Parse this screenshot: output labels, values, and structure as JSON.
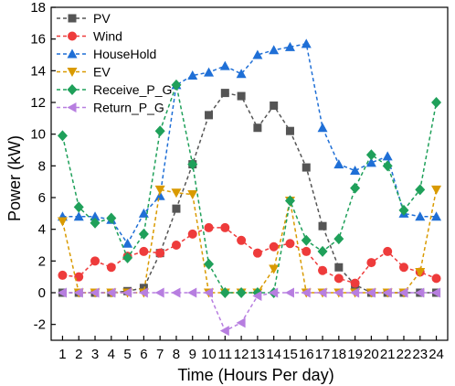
{
  "chart_data": {
    "type": "line",
    "xlabel": "Time (Hours Per day)",
    "ylabel": "Power (kW)",
    "xlim": [
      0.3,
      24.7
    ],
    "ylim": [
      -3,
      18
    ],
    "x": [
      1,
      2,
      3,
      4,
      5,
      6,
      7,
      8,
      9,
      10,
      11,
      12,
      13,
      14,
      15,
      16,
      17,
      18,
      19,
      20,
      21,
      22,
      23,
      24
    ],
    "x_tick_labels": [
      "1",
      "2",
      "3",
      "4",
      "5",
      "6",
      "7",
      "8",
      "9",
      "10",
      "11",
      "12",
      "13",
      "14",
      "15",
      "16",
      "17",
      "18",
      "19",
      "20",
      "21",
      "22",
      "23",
      "24"
    ],
    "y_ticks": [
      -2,
      0,
      2,
      4,
      6,
      8,
      10,
      12,
      14,
      16,
      18
    ],
    "y_tick_labels": [
      "-2",
      "0",
      "2",
      "4",
      "6",
      "8",
      "10",
      "12",
      "14",
      "16",
      "18"
    ],
    "legend_position": "top-left",
    "grid": false,
    "series": [
      {
        "name": "PV",
        "color": "#555555",
        "marker": "square",
        "values": [
          0,
          0,
          0,
          0,
          0.1,
          0.3,
          2.5,
          5.3,
          8.1,
          11.2,
          12.6,
          12.4,
          10.4,
          11.8,
          10.2,
          7.9,
          4.2,
          1.6,
          0.5,
          0,
          0,
          0,
          0,
          0
        ]
      },
      {
        "name": "Wind",
        "color": "#ee3b3b",
        "marker": "circle",
        "values": [
          1.1,
          1.0,
          2.0,
          1.6,
          2.3,
          2.6,
          2.5,
          3.0,
          3.7,
          4.1,
          4.1,
          3.3,
          2.5,
          2.9,
          3.1,
          2.6,
          1.4,
          0.9,
          0.6,
          1.9,
          2.6,
          1.6,
          1.3,
          0.9
        ]
      },
      {
        "name": "HouseHold",
        "color": "#1f6fd6",
        "marker": "triangle-up",
        "values": [
          4.8,
          4.8,
          4.8,
          4.6,
          3.1,
          5.0,
          6.1,
          13.1,
          13.7,
          13.9,
          14.3,
          13.8,
          15.0,
          15.3,
          15.5,
          15.7,
          10.4,
          8.1,
          7.7,
          8.2,
          8.6,
          5.0,
          4.8,
          4.8
        ]
      },
      {
        "name": "EV",
        "color": "#d99a00",
        "marker": "triangle-down",
        "values": [
          4.5,
          0,
          0,
          0,
          0,
          0,
          6.5,
          6.3,
          6.2,
          0,
          0,
          0,
          0,
          1.5,
          5.8,
          0,
          0,
          0,
          0,
          0,
          0,
          0,
          1.3,
          6.5
        ]
      },
      {
        "name": "Receive_P_G",
        "color": "#1fa05a",
        "marker": "diamond",
        "values": [
          9.9,
          5.4,
          4.4,
          4.7,
          2.2,
          3.7,
          10.2,
          13.1,
          8.1,
          1.8,
          0,
          0,
          0,
          0,
          5.8,
          3.3,
          2.6,
          3.4,
          6.6,
          8.7,
          8.0,
          5.2,
          6.5,
          12.0
        ]
      },
      {
        "name": "Return_P_G",
        "color": "#b77ee0",
        "marker": "triangle-left",
        "values": [
          0,
          0,
          0,
          0,
          0,
          0,
          0,
          0,
          0,
          0,
          -2.4,
          -1.9,
          -0.2,
          0,
          0,
          0,
          0,
          0,
          0,
          0,
          0,
          0,
          0,
          0
        ]
      }
    ]
  }
}
